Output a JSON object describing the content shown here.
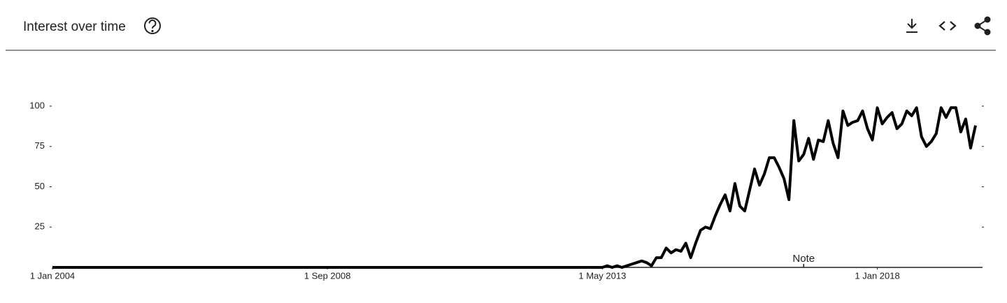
{
  "chart_data": {
    "type": "line",
    "title": "Interest over time",
    "annotation": "Note",
    "color": "#000000",
    "x": [
      "2004-01-01",
      "2004-02-01",
      "2004-03-01",
      "2004-04-01",
      "2004-05-01",
      "2004-06-01",
      "2004-07-01",
      "2004-08-01",
      "2004-09-01",
      "2004-10-01",
      "2004-11-01",
      "2004-12-01",
      "2005-01-01",
      "2005-02-01",
      "2005-03-01",
      "2005-04-01",
      "2005-05-01",
      "2005-06-01",
      "2005-07-01",
      "2005-08-01",
      "2005-09-01",
      "2005-10-01",
      "2005-11-01",
      "2005-12-01",
      "2006-01-01",
      "2006-02-01",
      "2006-03-01",
      "2006-04-01",
      "2006-05-01",
      "2006-06-01",
      "2006-07-01",
      "2006-08-01",
      "2006-09-01",
      "2006-10-01",
      "2006-11-01",
      "2006-12-01",
      "2007-01-01",
      "2007-02-01",
      "2007-03-01",
      "2007-04-01",
      "2007-05-01",
      "2007-06-01",
      "2007-07-01",
      "2007-08-01",
      "2007-09-01",
      "2007-10-01",
      "2007-11-01",
      "2007-12-01",
      "2008-01-01",
      "2008-02-01",
      "2008-03-01",
      "2008-04-01",
      "2008-05-01",
      "2008-06-01",
      "2008-07-01",
      "2008-08-01",
      "2008-09-01",
      "2008-10-01",
      "2008-11-01",
      "2008-12-01",
      "2009-01-01",
      "2009-02-01",
      "2009-03-01",
      "2009-04-01",
      "2009-05-01",
      "2009-06-01",
      "2009-07-01",
      "2009-08-01",
      "2009-09-01",
      "2009-10-01",
      "2009-11-01",
      "2009-12-01",
      "2010-01-01",
      "2010-02-01",
      "2010-03-01",
      "2010-04-01",
      "2010-05-01",
      "2010-06-01",
      "2010-07-01",
      "2010-08-01",
      "2010-09-01",
      "2010-10-01",
      "2010-11-01",
      "2010-12-01",
      "2011-01-01",
      "2011-02-01",
      "2011-03-01",
      "2011-04-01",
      "2011-05-01",
      "2011-06-01",
      "2011-07-01",
      "2011-08-01",
      "2011-09-01",
      "2011-10-01",
      "2011-11-01",
      "2011-12-01",
      "2012-01-01",
      "2012-02-01",
      "2012-03-01",
      "2012-04-01",
      "2012-05-01",
      "2012-06-01",
      "2012-07-01",
      "2012-08-01",
      "2012-09-01",
      "2012-10-01",
      "2012-11-01",
      "2012-12-01",
      "2013-01-01",
      "2013-02-01",
      "2013-03-01",
      "2013-04-01",
      "2013-05-01",
      "2013-06-01",
      "2013-07-01",
      "2013-08-01",
      "2013-09-01",
      "2013-10-01",
      "2013-11-01",
      "2013-12-01",
      "2014-01-01",
      "2014-02-01",
      "2014-03-01",
      "2014-04-01",
      "2014-05-01",
      "2014-06-01",
      "2014-07-01",
      "2014-08-01",
      "2014-09-01",
      "2014-10-01",
      "2014-11-01",
      "2014-12-01",
      "2015-01-01",
      "2015-02-01",
      "2015-03-01",
      "2015-04-01",
      "2015-05-01",
      "2015-06-01",
      "2015-07-01",
      "2015-08-01",
      "2015-09-01",
      "2015-10-01",
      "2015-11-01",
      "2015-12-01",
      "2016-01-01",
      "2016-02-01",
      "2016-03-01",
      "2016-04-01",
      "2016-05-01",
      "2016-06-01",
      "2016-07-01",
      "2016-08-01",
      "2016-09-01",
      "2016-10-01",
      "2016-11-01",
      "2016-12-01",
      "2017-01-01",
      "2017-02-01",
      "2017-03-01",
      "2017-04-01",
      "2017-05-01",
      "2017-06-01",
      "2017-07-01",
      "2017-08-01",
      "2017-09-01",
      "2017-10-01",
      "2017-11-01",
      "2017-12-01",
      "2018-01-01",
      "2018-02-01",
      "2018-03-01",
      "2018-04-01",
      "2018-05-01",
      "2018-06-01",
      "2018-07-01",
      "2018-08-01",
      "2018-09-01",
      "2018-10-01",
      "2018-11-01",
      "2018-12-01",
      "2019-01-01",
      "2019-02-01",
      "2019-03-01",
      "2019-04-01",
      "2019-05-01",
      "2019-06-01",
      "2019-07-01",
      "2019-08-01",
      "2019-09-01"
    ],
    "values": [
      0,
      0,
      0,
      0,
      0,
      0,
      0,
      0,
      0,
      0,
      0,
      0,
      0,
      0,
      0,
      0,
      0,
      0,
      0,
      0,
      0,
      0,
      0,
      0,
      0,
      0,
      0,
      0,
      0,
      0,
      0,
      0,
      0,
      0,
      0,
      0,
      0,
      0,
      0,
      0,
      0,
      0,
      0,
      0,
      0,
      0,
      0,
      0,
      0,
      0,
      0,
      0,
      0,
      0,
      0,
      0,
      0,
      0,
      0,
      0,
      0,
      0,
      0,
      0,
      0,
      0,
      0,
      0,
      0,
      0,
      0,
      0,
      0,
      0,
      0,
      0,
      0,
      0,
      0,
      0,
      0,
      0,
      0,
      0,
      0,
      0,
      0,
      0,
      0,
      0,
      0,
      0,
      0,
      0,
      0,
      0,
      0,
      0,
      0,
      0,
      0,
      0,
      0,
      0,
      0,
      0,
      0,
      0,
      0,
      0,
      0,
      0,
      0,
      1,
      0,
      1,
      0,
      1,
      2,
      3,
      4,
      3,
      1,
      6,
      6,
      12,
      9,
      11,
      10,
      15,
      6,
      15,
      23,
      25,
      24,
      32,
      39,
      45,
      35,
      52,
      38,
      35,
      48,
      61,
      51,
      58,
      68,
      68,
      62,
      55,
      42,
      91,
      66,
      70,
      80,
      67,
      79,
      78,
      91,
      77,
      68,
      97,
      88,
      90,
      91,
      97,
      86,
      79,
      99,
      89,
      93,
      96,
      86,
      89,
      97,
      94,
      99,
      81,
      75,
      78,
      83,
      99,
      93,
      99,
      99,
      84,
      92,
      74,
      88
    ],
    "xlim": [
      "2004-01-01",
      "2019-10-01"
    ],
    "xticks": [
      {
        "value": "2004-01-01",
        "label": "1 Jan 2004"
      },
      {
        "value": "2008-09-01",
        "label": "1 Sep 2008"
      },
      {
        "value": "2013-05-01",
        "label": "1 May 2013"
      },
      {
        "value": "2018-01-01",
        "label": "1 Jan 2018"
      }
    ],
    "annotation_x": "2016-10-01",
    "ylim": [
      0,
      100
    ],
    "yticks": [
      25,
      50,
      75,
      100
    ],
    "grid": false
  }
}
